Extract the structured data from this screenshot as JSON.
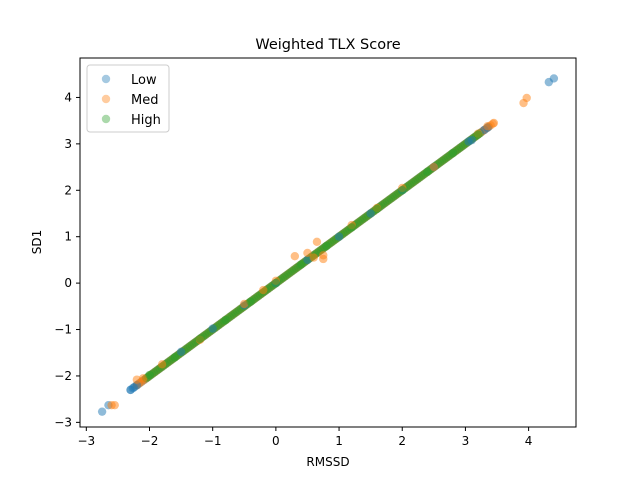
{
  "chart_data": {
    "type": "scatter",
    "title": "Weighted TLX Score",
    "xlabel": "RMSSD",
    "ylabel": "SD1",
    "xlim": [
      -3.1,
      4.75
    ],
    "ylim": [
      -3.1,
      4.85
    ],
    "xticks": [
      -3,
      -2,
      -1,
      0,
      1,
      2,
      3,
      4
    ],
    "yticks": [
      -3,
      -2,
      -1,
      0,
      1,
      2,
      3,
      4
    ],
    "grid": false,
    "legend_position": "top-left",
    "series": [
      {
        "name": "Low",
        "color": "#1f77b4",
        "points": [
          [
            -2.75,
            -2.77
          ],
          [
            -2.65,
            -2.63
          ],
          [
            -2.3,
            -2.3
          ],
          [
            -2.25,
            -2.25
          ],
          [
            -2.2,
            -2.2
          ],
          [
            -1.5,
            -1.48
          ],
          [
            -1.0,
            -0.98
          ],
          [
            -0.5,
            -0.48
          ],
          [
            0.0,
            0.0
          ],
          [
            0.5,
            0.5
          ],
          [
            1.0,
            1.0
          ],
          [
            1.5,
            1.5
          ],
          [
            2.0,
            2.0
          ],
          [
            2.5,
            2.5
          ],
          [
            3.05,
            3.05
          ],
          [
            3.1,
            3.08
          ],
          [
            3.3,
            3.3
          ],
          [
            3.35,
            3.35
          ],
          [
            4.32,
            4.33
          ],
          [
            4.4,
            4.41
          ]
        ]
      },
      {
        "name": "Med",
        "color": "#ff7f0e",
        "points": [
          [
            -2.6,
            -2.63
          ],
          [
            -2.55,
            -2.63
          ],
          [
            -2.2,
            -2.08
          ],
          [
            -2.1,
            -2.05
          ],
          [
            -1.8,
            -1.75
          ],
          [
            -1.2,
            -1.22
          ],
          [
            -0.5,
            -0.45
          ],
          [
            -0.2,
            -0.15
          ],
          [
            0.0,
            0.05
          ],
          [
            0.3,
            0.58
          ],
          [
            0.65,
            0.89
          ],
          [
            0.6,
            0.55
          ],
          [
            0.75,
            0.52
          ],
          [
            0.75,
            0.6
          ],
          [
            0.5,
            0.65
          ],
          [
            1.2,
            1.25
          ],
          [
            1.6,
            1.62
          ],
          [
            2.0,
            2.05
          ],
          [
            2.5,
            2.5
          ],
          [
            3.2,
            3.22
          ],
          [
            3.35,
            3.38
          ],
          [
            3.45,
            3.45
          ],
          [
            3.92,
            3.88
          ],
          [
            3.97,
            3.99
          ]
        ]
      },
      {
        "name": "High",
        "color": "#2ca02c",
        "points": [
          [
            -2.0,
            -1.98
          ],
          [
            -1.6,
            -1.6
          ],
          [
            -1.2,
            -1.2
          ],
          [
            -0.8,
            -0.8
          ],
          [
            -0.4,
            -0.4
          ],
          [
            0.0,
            0.0
          ],
          [
            0.4,
            0.4
          ],
          [
            0.8,
            0.8
          ],
          [
            1.2,
            1.2
          ],
          [
            1.6,
            1.6
          ],
          [
            2.0,
            2.0
          ],
          [
            2.4,
            2.4
          ],
          [
            2.8,
            2.8
          ],
          [
            3.2,
            3.2
          ]
        ]
      }
    ]
  }
}
